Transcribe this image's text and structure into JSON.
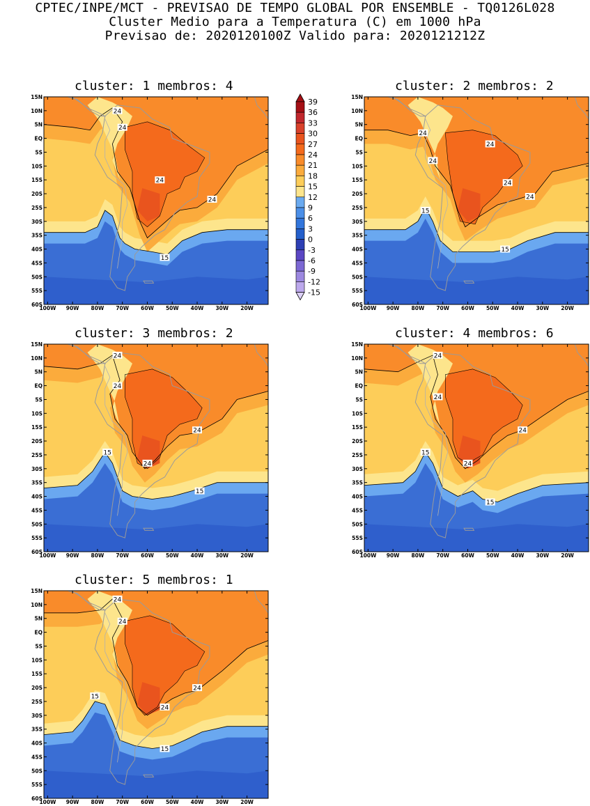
{
  "header": {
    "line1": "CPTEC/INPE/MCT - PREVISAO DE TEMPO GLOBAL POR ENSEMBLE - TQ0126L028",
    "line2": "Cluster Medio para a Temperatura (C) em 1000 hPa",
    "line3": "Previsao de: 2020120100Z   Valido para: 2020121212Z"
  },
  "axes": {
    "lat_labels": [
      "15N",
      "10N",
      "5N",
      "EQ",
      "5S",
      "10S",
      "15S",
      "20S",
      "25S",
      "30S",
      "35S",
      "40S",
      "45S",
      "50S",
      "55S",
      "60S"
    ],
    "lon_labels": [
      "100W",
      "90W",
      "80W",
      "70W",
      "60W",
      "50W",
      "40W",
      "30W",
      "20W"
    ]
  },
  "colorbar": {
    "labels": [
      "39",
      "36",
      "33",
      "30",
      "27",
      "24",
      "21",
      "18",
      "15",
      "12",
      "9",
      "6",
      "3",
      "0",
      "-3",
      "-6",
      "-9",
      "-12",
      "-15"
    ],
    "colors": [
      "#a50f15",
      "#c1272d",
      "#d9412b",
      "#e9541e",
      "#f46a1c",
      "#f98b2a",
      "#fbab3c",
      "#fdcd59",
      "#fde58c",
      "#6aaaf0",
      "#4b8fe8",
      "#3276dc",
      "#245fcb",
      "#2d3fb4",
      "#5b47c4",
      "#7c68d4",
      "#9c88e0",
      "#bca8ec",
      "#dcd0f7"
    ]
  },
  "panels": [
    {
      "id": "cluster-1",
      "title": "cluster: 1   membros: 4",
      "contour_labels": [
        {
          "text": "24",
          "lon": -72,
          "lat": 10
        },
        {
          "text": "24",
          "lon": -70,
          "lat": 4
        },
        {
          "text": "24",
          "lon": -55,
          "lat": -15
        },
        {
          "text": "24",
          "lon": -34,
          "lat": -22
        },
        {
          "text": "15",
          "lon": -53,
          "lat": -43
        }
      ]
    },
    {
      "id": "cluster-2",
      "title": "cluster: 2   membros: 2",
      "contour_labels": [
        {
          "text": "24",
          "lon": -78,
          "lat": 2
        },
        {
          "text": "24",
          "lon": -51,
          "lat": -2
        },
        {
          "text": "24",
          "lon": -74,
          "lat": -8
        },
        {
          "text": "24",
          "lon": -44,
          "lat": -16
        },
        {
          "text": "24",
          "lon": -35,
          "lat": -21
        },
        {
          "text": "15",
          "lon": -77,
          "lat": -26
        },
        {
          "text": "15",
          "lon": -45,
          "lat": -40
        }
      ]
    },
    {
      "id": "cluster-3",
      "title": "cluster: 3   membros: 2",
      "contour_labels": [
        {
          "text": "24",
          "lon": -72,
          "lat": 11
        },
        {
          "text": "24",
          "lon": -72,
          "lat": 0
        },
        {
          "text": "24",
          "lon": -40,
          "lat": -16
        },
        {
          "text": "24",
          "lon": -60,
          "lat": -28
        },
        {
          "text": "15",
          "lon": -76,
          "lat": -24
        },
        {
          "text": "15",
          "lon": -39,
          "lat": -38
        }
      ]
    },
    {
      "id": "cluster-4",
      "title": "cluster: 4   membros: 6",
      "contour_labels": [
        {
          "text": "24",
          "lon": -72,
          "lat": 11
        },
        {
          "text": "24",
          "lon": -72,
          "lat": -4
        },
        {
          "text": "24",
          "lon": -38,
          "lat": -16
        },
        {
          "text": "24",
          "lon": -60,
          "lat": -28
        },
        {
          "text": "15",
          "lon": -77,
          "lat": -24
        },
        {
          "text": "15",
          "lon": -51,
          "lat": -42
        }
      ]
    },
    {
      "id": "cluster-5",
      "title": "cluster: 5   membros: 1",
      "contour_labels": [
        {
          "text": "24",
          "lon": -72,
          "lat": 12
        },
        {
          "text": "24",
          "lon": -70,
          "lat": 4
        },
        {
          "text": "24",
          "lon": -40,
          "lat": -20
        },
        {
          "text": "24",
          "lon": -53,
          "lat": -27
        },
        {
          "text": "15",
          "lon": -81,
          "lat": -23
        },
        {
          "text": "15",
          "lon": -53,
          "lat": -42
        }
      ]
    }
  ]
}
